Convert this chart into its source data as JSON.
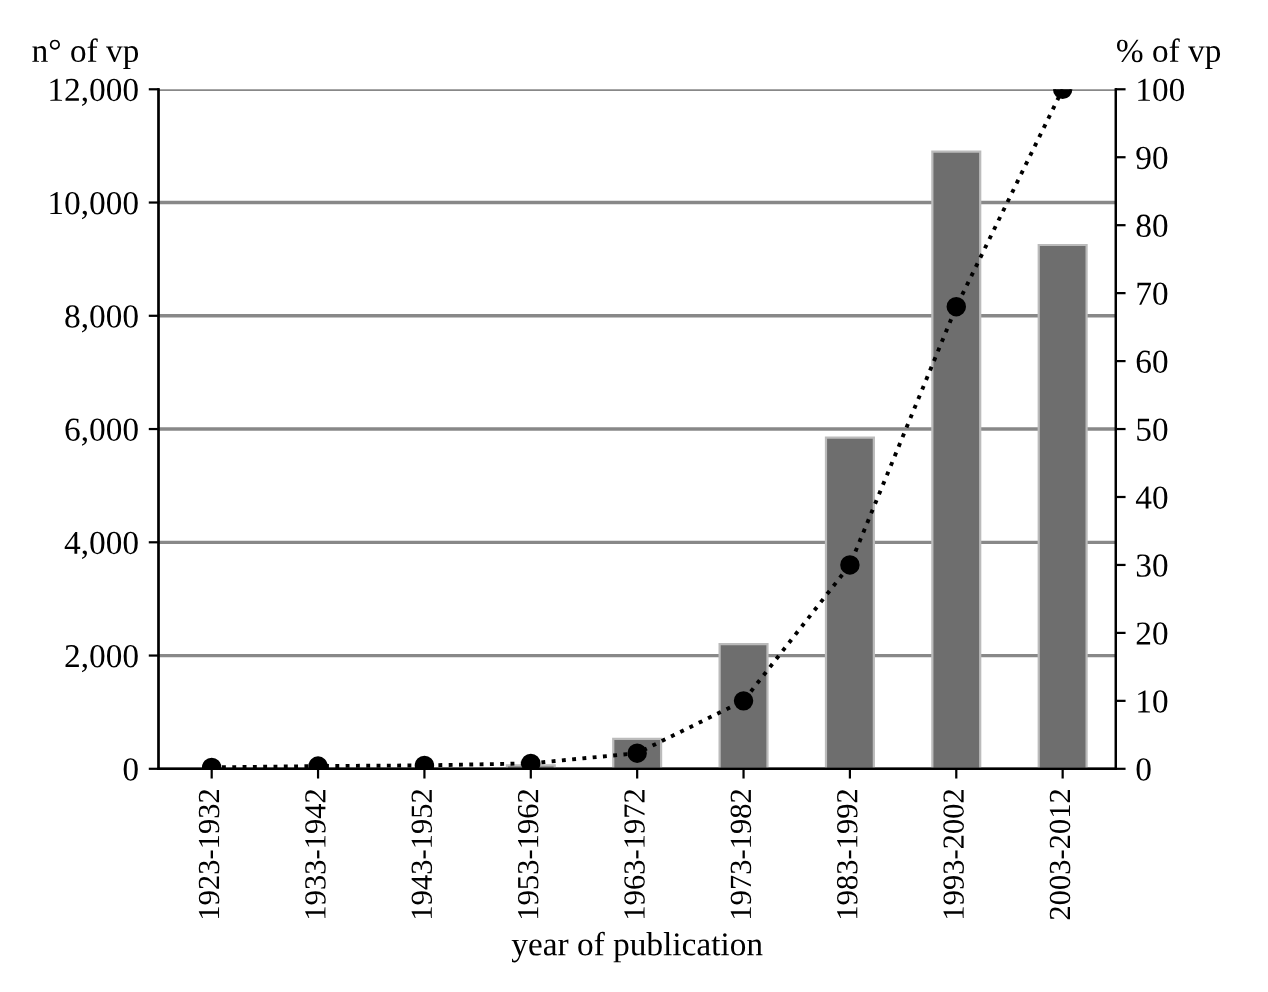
{
  "chart_data": {
    "type": "bar",
    "xlabel": "year of publication",
    "ylabel": "n° of vp",
    "y2label": "% of vp",
    "categories": [
      "1923-1932",
      "1933-1942",
      "1943-1952",
      "1953-1962",
      "1963-1972",
      "1973-1982",
      "1983-1992",
      "1993-2002",
      "2003-2012"
    ],
    "series": [
      {
        "color": "#6e6e6e",
        "values": [
          null,
          null,
          null,
          60,
          530,
          2200,
          5850,
          10900,
          9250
        ]
      },
      {
        "type": "line",
        "axis": "y2",
        "color": "#000000",
        "marker": "circle",
        "line_style": "dotted",
        "values": [
          0.2,
          0.4,
          0.5,
          0.8,
          2.3,
          10,
          30,
          68,
          100
        ]
      }
    ],
    "ylim": [
      0,
      12000
    ],
    "yticks": [
      {
        "value": 0,
        "label": "0"
      },
      {
        "value": 2000,
        "label": "2,000"
      },
      {
        "value": 4000,
        "label": "4,000"
      },
      {
        "value": 6000,
        "label": "6,000"
      },
      {
        "value": 8000,
        "label": "8,000"
      },
      {
        "value": 10000,
        "label": "10,000"
      },
      {
        "value": 12000,
        "label": "12,000"
      }
    ],
    "y2lim": [
      0,
      100
    ],
    "y2ticks": [
      0,
      10,
      20,
      30,
      40,
      50,
      60,
      70,
      80,
      90,
      100
    ],
    "grid": "y",
    "legend": false
  }
}
